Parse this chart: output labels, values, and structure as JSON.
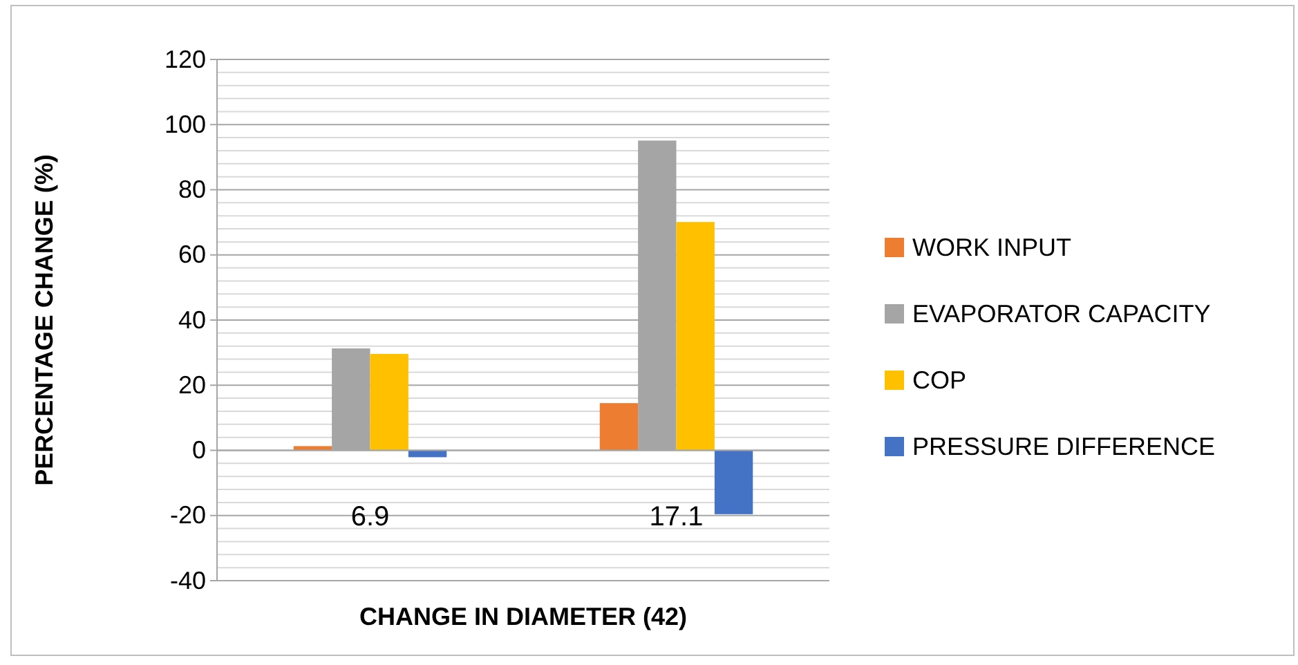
{
  "chart_data": {
    "type": "bar",
    "xlabel": "CHANGE IN DIAMETER (42)",
    "ylabel": "PERCENTAGE CHANGE (%)",
    "categories": [
      "6.9",
      "17.1"
    ],
    "series": [
      {
        "name": "WORK INPUT",
        "color": "#ed7d31",
        "values": [
          1.3,
          14.5
        ]
      },
      {
        "name": "EVAPORATOR CAPACITY",
        "color": "#a5a5a5",
        "values": [
          31.3,
          95.1
        ]
      },
      {
        "name": "COP",
        "color": "#ffc000",
        "values": [
          29.6,
          70.1
        ]
      },
      {
        "name": "PRESSURE DIFFERENCE",
        "color": "#4472c4",
        "values": [
          -2.1,
          -19.6
        ]
      }
    ],
    "ylim": [
      -40,
      120
    ],
    "yticks": [
      -40,
      -20,
      0,
      20,
      40,
      60,
      80,
      100,
      120
    ],
    "grid": true,
    "legend": "right"
  }
}
